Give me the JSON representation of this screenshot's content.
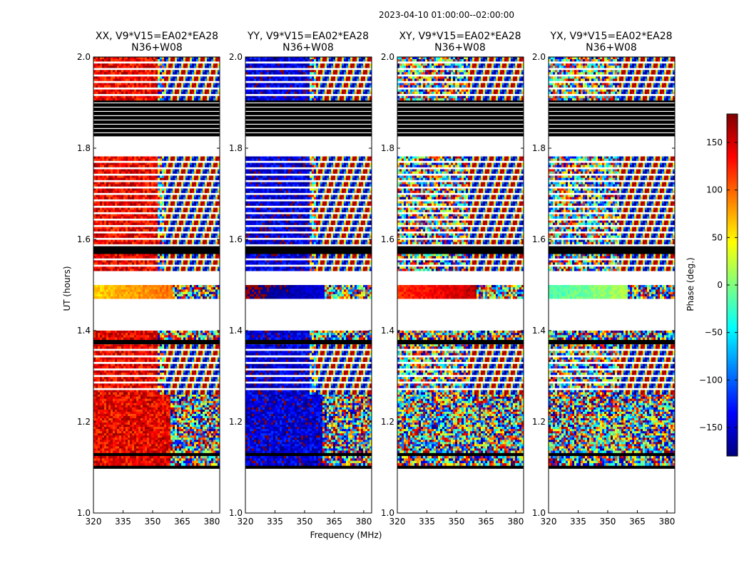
{
  "figure": {
    "suptitle": "2023-04-10  01:00:00--02:00:00",
    "xlabel": "Frequency (MHz)",
    "ylabel": "UT (hours)",
    "colorbar_label": "Phase (deg.)"
  },
  "chart_data": {
    "type": "heatmap",
    "x_ticks": [
      320,
      335,
      350,
      365,
      380
    ],
    "xlim": [
      320,
      384
    ],
    "y_ticks": [
      1.0,
      1.2,
      1.4,
      1.6,
      1.8,
      2.0
    ],
    "y_tick_labels": [
      "1.0",
      "1.2",
      "1.4",
      "1.6",
      "1.8",
      "2.0"
    ],
    "ylim": [
      1.0,
      2.0
    ],
    "colorbar": {
      "range": [
        -180,
        180
      ],
      "ticks": [
        150,
        100,
        50,
        0,
        -50,
        -100,
        -150
      ],
      "tick_labels": [
        "150",
        "100",
        "50",
        "0",
        "−50",
        "−100",
        "−150"
      ],
      "colormap": [
        "#00007f",
        "#0000ff",
        "#007fff",
        "#00ffff",
        "#7fff7f",
        "#ffff00",
        "#ff7f00",
        "#ff0000",
        "#7f0000"
      ]
    },
    "flag_color": "#000000",
    "panels": [
      {
        "title_line1": "XX, V9*V15=EA02*EA28",
        "title_line2": "N36+W08",
        "pol": "XX",
        "base_phase": 140,
        "band_phase": 60
      },
      {
        "title_line1": "YY, V9*V15=EA02*EA28",
        "title_line2": "N36+W08",
        "pol": "YY",
        "base_phase": -150,
        "band_phase": 175
      },
      {
        "title_line1": "XY, V9*V15=EA02*EA28",
        "title_line2": "N36+W08",
        "pol": "XY",
        "base_phase": null,
        "band_phase": 120
      },
      {
        "title_line1": "YX, V9*V15=EA02*EA28",
        "title_line2": "N36+W08",
        "pol": "YX",
        "base_phase": null,
        "band_phase": -20
      }
    ],
    "time_segments": [
      {
        "start": 1.0,
        "end": 1.097,
        "kind": "empty"
      },
      {
        "start": 1.097,
        "end": 1.104,
        "kind": "flagged"
      },
      {
        "start": 1.104,
        "end": 1.125,
        "kind": "data"
      },
      {
        "start": 1.125,
        "end": 1.132,
        "kind": "flagged"
      },
      {
        "start": 1.132,
        "end": 1.26,
        "kind": "data"
      },
      {
        "start": 1.26,
        "end": 1.37,
        "kind": "striped"
      },
      {
        "start": 1.37,
        "end": 1.38,
        "kind": "flagged"
      },
      {
        "start": 1.38,
        "end": 1.4,
        "kind": "data"
      },
      {
        "start": 1.4,
        "end": 1.47,
        "kind": "empty"
      },
      {
        "start": 1.47,
        "end": 1.5,
        "kind": "band"
      },
      {
        "start": 1.5,
        "end": 1.531,
        "kind": "empty"
      },
      {
        "start": 1.531,
        "end": 1.568,
        "kind": "striped"
      },
      {
        "start": 1.568,
        "end": 1.585,
        "kind": "flagged"
      },
      {
        "start": 1.585,
        "end": 1.782,
        "kind": "striped"
      },
      {
        "start": 1.782,
        "end": 1.826,
        "kind": "empty"
      },
      {
        "start": 1.826,
        "end": 1.905,
        "kind": "flagged-lines"
      },
      {
        "start": 1.905,
        "end": 2.0,
        "kind": "striped"
      }
    ]
  }
}
